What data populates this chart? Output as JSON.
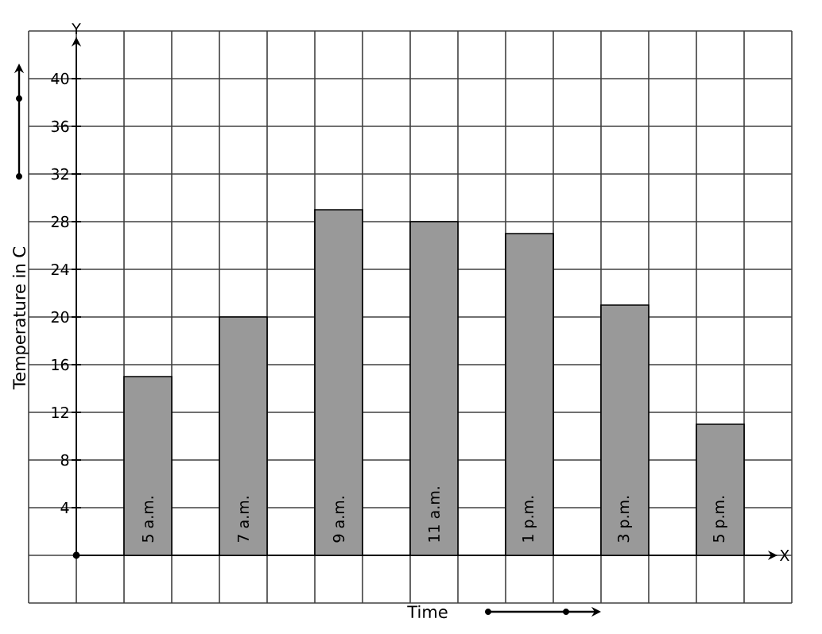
{
  "chart_data": {
    "type": "bar",
    "xlabel": "Time",
    "ylabel": "Temperature in C",
    "categories": [
      "5 a.m.",
      "7 a.m.",
      "9 a.m.",
      "11 a.m.",
      "1 p.m.",
      "3 p.m.",
      "5 p.m."
    ],
    "values": [
      15,
      20,
      29,
      28,
      27,
      21,
      11
    ],
    "color": "#999999",
    "ylim": [
      -4,
      44
    ],
    "yticks": [
      4,
      8,
      12,
      16,
      20,
      24,
      28,
      32,
      36,
      40
    ],
    "grid": true,
    "annotations": [
      "X",
      "Y"
    ]
  }
}
